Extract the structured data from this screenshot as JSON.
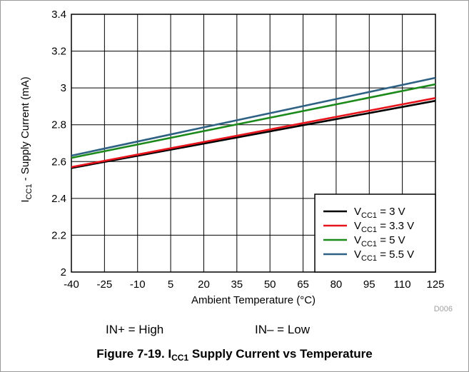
{
  "chart_data": {
    "type": "line",
    "xlabel": "Ambient Temperature (°C)",
    "ylabel": "I_CC1 - Supply Current (mA)",
    "ylabel_parts": {
      "main": "I",
      "sub": "CC1",
      "rest": " - Supply Current (mA)"
    },
    "xlim": [
      -40,
      125
    ],
    "ylim": [
      2,
      3.4
    ],
    "x_ticks": [
      -40,
      -25,
      -10,
      5,
      20,
      35,
      50,
      65,
      80,
      95,
      110,
      125
    ],
    "y_ticks": [
      2,
      2.2,
      2.4,
      2.6,
      2.8,
      3,
      3.2,
      3.4
    ],
    "y_tick_labels": [
      "2",
      "2.2",
      "2.4",
      "2.6",
      "2.8",
      "3",
      "3.2",
      "3.4"
    ],
    "grid": true,
    "legend_position": "bottom-right",
    "series": [
      {
        "name": "V_CC1 = 3 V",
        "name_parts": {
          "main": "V",
          "sub": "CC1",
          "rest": " = 3 V"
        },
        "color": "#000000",
        "x": [
          -40,
          125
        ],
        "values": [
          2.565,
          2.93
        ]
      },
      {
        "name": "V_CC1 = 3.3 V",
        "name_parts": {
          "main": "V",
          "sub": "CC1",
          "rest": " = 3.3 V"
        },
        "color": "#e8141c",
        "x": [
          -40,
          125
        ],
        "values": [
          2.57,
          2.945
        ]
      },
      {
        "name": "V_CC1 = 5 V",
        "name_parts": {
          "main": "V",
          "sub": "CC1",
          "rest": " = 5 V"
        },
        "color": "#1b8a1b",
        "x": [
          -40,
          125
        ],
        "values": [
          2.62,
          3.02
        ]
      },
      {
        "name": "V_CC1 = 5.5 V",
        "name_parts": {
          "main": "V",
          "sub": "CC1",
          "rest": " = 5.5 V"
        },
        "color": "#2e6183",
        "x": [
          -40,
          125
        ],
        "values": [
          2.632,
          3.055
        ]
      }
    ],
    "watermark": "D006"
  },
  "notes": {
    "in_plus": "IN+ = High",
    "in_minus": "IN– = Low"
  },
  "caption": {
    "prefix": "Figure 7-19. I",
    "sub": "CC1",
    "suffix": " Supply Current vs Temperature"
  }
}
